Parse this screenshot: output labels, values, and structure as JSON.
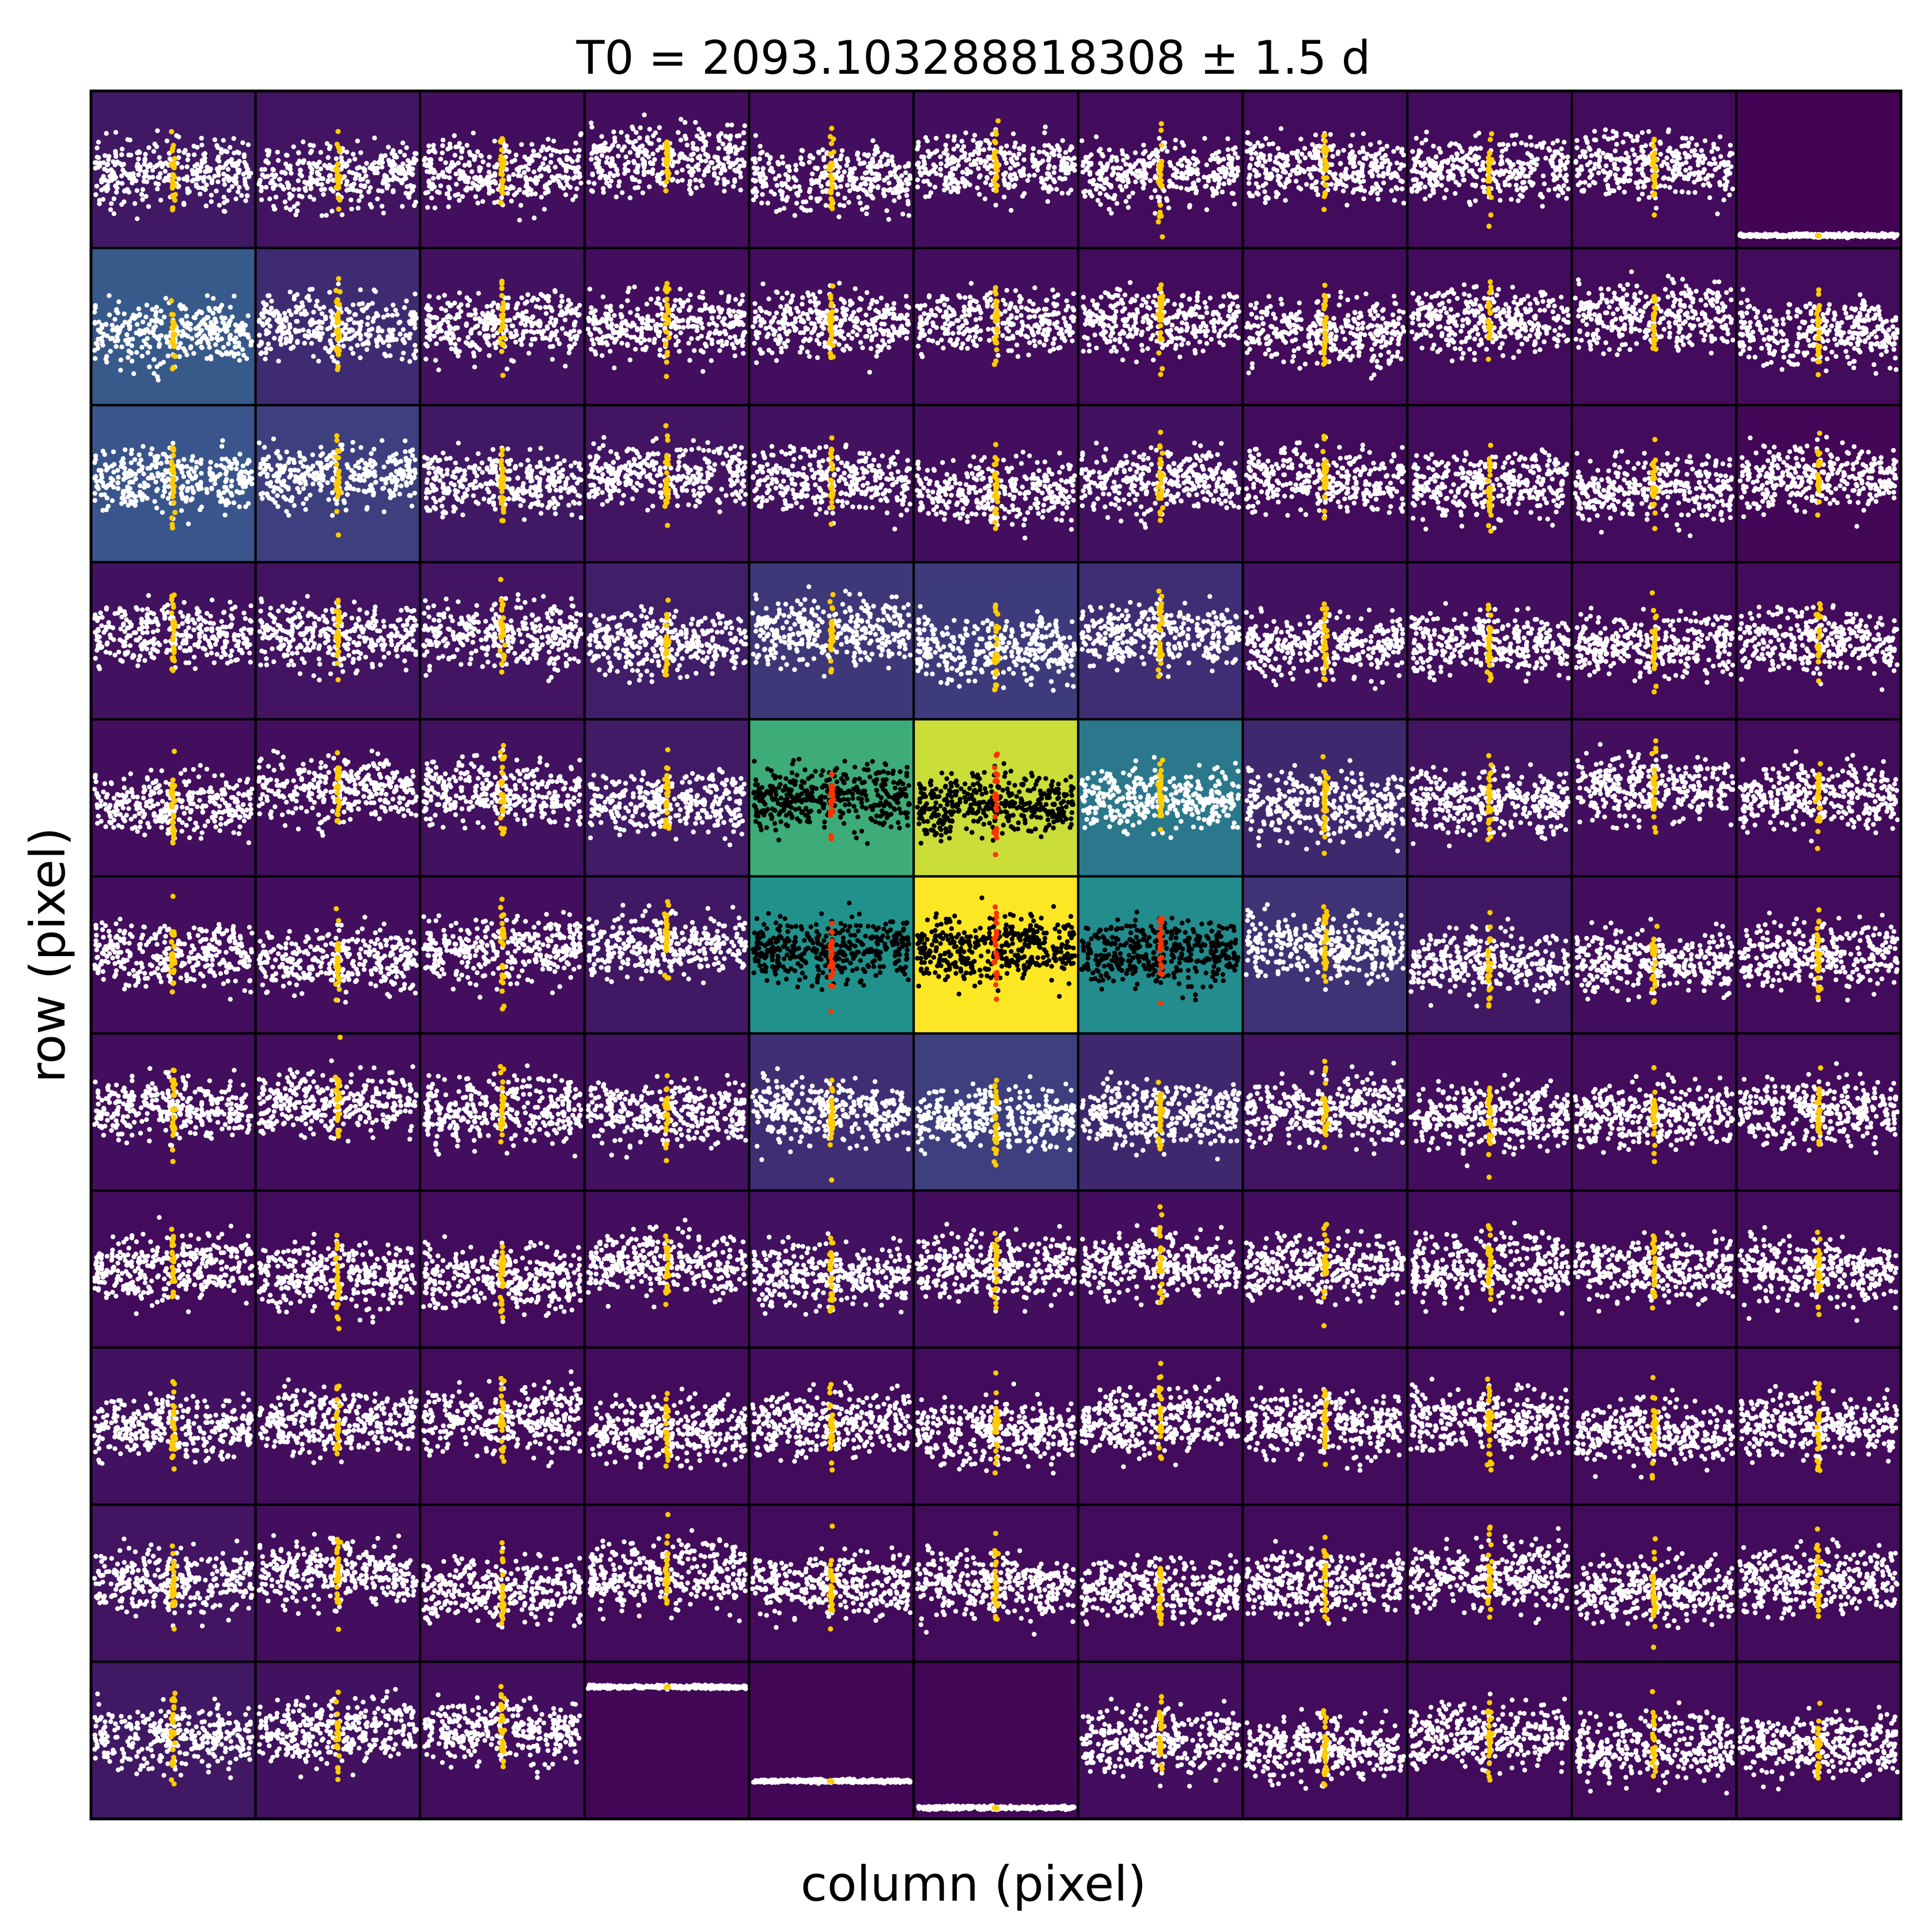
{
  "chart_data": {
    "type": "scatter",
    "title": "T0 = 2093.103288818308 ± 1.5 d",
    "xlabel": "column (pixel)",
    "ylabel": "row (pixel)",
    "grid": false,
    "legend": "none",
    "layout": {
      "rows": 11,
      "cols": 11
    },
    "colormap": "viridis",
    "point_color": "#ffffff",
    "point_color_aperture": "#000000",
    "transit_color": "#ffcc00",
    "transit_color_aperture": "#ff3300",
    "cell_brightness": [
      [
        0.07,
        0.06,
        0.04,
        0.04,
        0.04,
        0.04,
        0.03,
        0.03,
        0.03,
        0.03,
        0.01
      ],
      [
        0.28,
        0.13,
        0.05,
        0.04,
        0.04,
        0.04,
        0.03,
        0.03,
        0.03,
        0.03,
        0.03
      ],
      [
        0.26,
        0.19,
        0.07,
        0.06,
        0.05,
        0.04,
        0.05,
        0.03,
        0.03,
        0.03,
        0.02
      ],
      [
        0.05,
        0.06,
        0.06,
        0.09,
        0.17,
        0.18,
        0.14,
        0.05,
        0.04,
        0.03,
        0.03
      ],
      [
        0.04,
        0.04,
        0.05,
        0.08,
        0.62,
        0.92,
        0.4,
        0.12,
        0.06,
        0.04,
        0.03
      ],
      [
        0.04,
        0.04,
        0.04,
        0.07,
        0.5,
        1.0,
        0.48,
        0.15,
        0.07,
        0.04,
        0.03
      ],
      [
        0.04,
        0.04,
        0.04,
        0.05,
        0.14,
        0.19,
        0.12,
        0.06,
        0.04,
        0.03,
        0.03
      ],
      [
        0.03,
        0.03,
        0.03,
        0.04,
        0.05,
        0.04,
        0.04,
        0.04,
        0.03,
        0.03,
        0.03
      ],
      [
        0.05,
        0.04,
        0.03,
        0.03,
        0.03,
        0.03,
        0.03,
        0.03,
        0.03,
        0.03,
        0.03
      ],
      [
        0.06,
        0.04,
        0.03,
        0.03,
        0.03,
        0.03,
        0.03,
        0.03,
        0.03,
        0.03,
        0.03
      ],
      [
        0.07,
        0.05,
        0.04,
        0.02,
        0.02,
        0.02,
        0.04,
        0.03,
        0.03,
        0.03,
        0.03
      ]
    ],
    "aperture_pixels": [
      [
        4,
        4
      ],
      [
        4,
        5
      ],
      [
        5,
        4
      ],
      [
        5,
        5
      ],
      [
        5,
        6
      ]
    ],
    "flat_pixels": [
      [
        0,
        10
      ],
      [
        10,
        3
      ],
      [
        10,
        4
      ],
      [
        10,
        5
      ]
    ],
    "transit_phase": 0.5
  }
}
